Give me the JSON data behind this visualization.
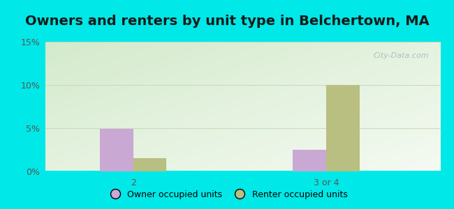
{
  "title": "Owners and renters by unit type in Belchertown, MA",
  "categories": [
    "2",
    "3 or 4"
  ],
  "owner_values": [
    4.9,
    2.5
  ],
  "renter_values": [
    1.5,
    10.0
  ],
  "owner_color": "#c9a8d4",
  "renter_color": "#b8bf80",
  "owner_label": "Owner occupied units",
  "renter_label": "Renter occupied units",
  "ylim": [
    0,
    15
  ],
  "yticks": [
    0,
    5,
    10,
    15
  ],
  "yticklabels": [
    "0%",
    "5%",
    "10%",
    "15%"
  ],
  "bg_color": "#00e8e8",
  "plot_bg_color": "#e6f2e0",
  "bar_width": 0.38,
  "title_fontsize": 14,
  "legend_fontsize": 9,
  "tick_color": "#555555",
  "grid_color": "#c8dcc0",
  "watermark_color": "#a0b8b8"
}
